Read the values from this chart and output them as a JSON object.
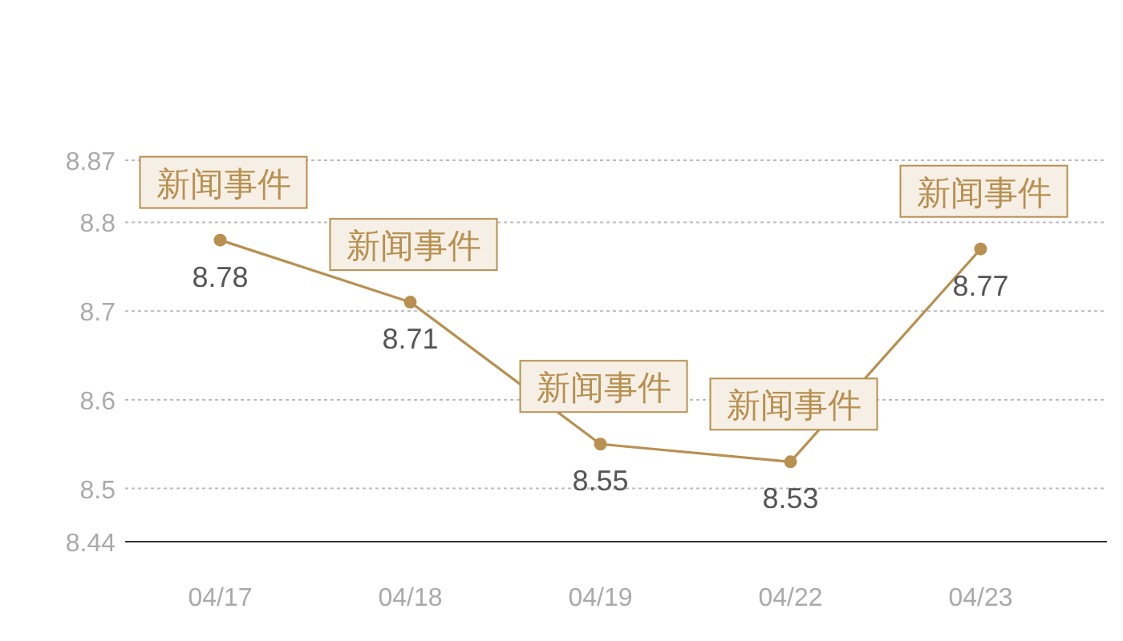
{
  "chart_data": {
    "type": "line",
    "categories": [
      "04/17",
      "04/18",
      "04/19",
      "04/22",
      "04/23"
    ],
    "series": [
      {
        "color": "#b8904f",
        "values": [
          8.78,
          8.71,
          8.55,
          8.53,
          8.77
        ]
      }
    ],
    "ylim": [
      8.44,
      8.87
    ],
    "yticks": [
      8.44,
      8.5,
      8.6,
      8.7,
      8.8,
      8.87
    ],
    "grid": "y",
    "marker": "circle",
    "data_labels": true,
    "annotations": [
      {
        "text": "新闻事件",
        "x": "04/17",
        "y": 8.78
      },
      {
        "text": "新闻事件",
        "x": "04/18",
        "y": 8.71
      },
      {
        "text": "新闻事件",
        "x": "04/19",
        "y": 8.55
      },
      {
        "text": "新闻事件",
        "x": "04/22",
        "y": 8.53
      },
      {
        "text": "新闻事件",
        "x": "04/23",
        "y": 8.77
      }
    ]
  }
}
